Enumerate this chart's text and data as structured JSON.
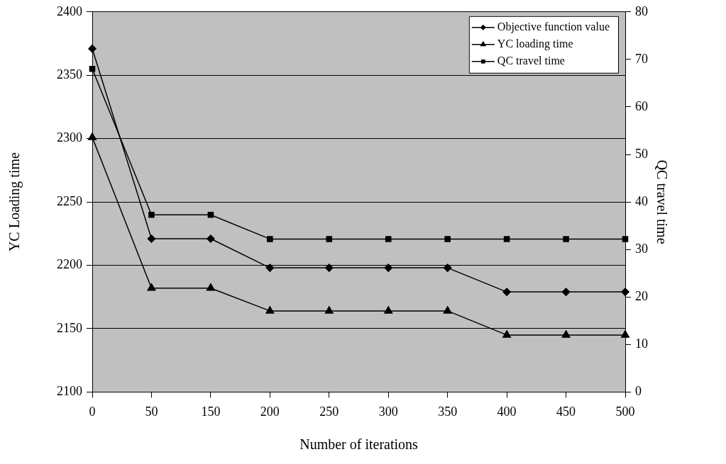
{
  "chart_data": {
    "type": "line",
    "xlabel": "Number of iterations",
    "ylabel": "YC Loading time",
    "y2label": "QC travel time",
    "categories": [
      "0",
      "50",
      "150",
      "200",
      "250",
      "300",
      "350",
      "400",
      "450",
      "500"
    ],
    "series": [
      {
        "name": "Objective function value",
        "color": "#000000",
        "marker": "diamond",
        "values": [
          2371,
          2221,
          2221,
          2198,
          2198,
          2198,
          2198,
          2179,
          2179,
          2179
        ]
      },
      {
        "name": "YC loading time",
        "color": "#000000",
        "marker": "triangle",
        "values": [
          2301,
          2182,
          2182,
          2164,
          2164,
          2164,
          2164,
          2145,
          2145,
          2145
        ]
      },
      {
        "name": "QC travel time",
        "color": "#000000",
        "marker": "square",
        "axis": "y2",
        "values": [
          68,
          37.3,
          37.3,
          32.2,
          32.2,
          32.2,
          32.2,
          32.2,
          32.2,
          32.2
        ]
      }
    ],
    "ylim": [
      2100,
      2400
    ],
    "yticks": [
      2100,
      2150,
      2200,
      2250,
      2300,
      2350,
      2400
    ],
    "y2lim": [
      0,
      80
    ],
    "y2ticks": [
      0,
      10,
      20,
      30,
      40,
      50,
      60,
      70,
      80
    ],
    "grid": "y",
    "legend": "top right"
  }
}
